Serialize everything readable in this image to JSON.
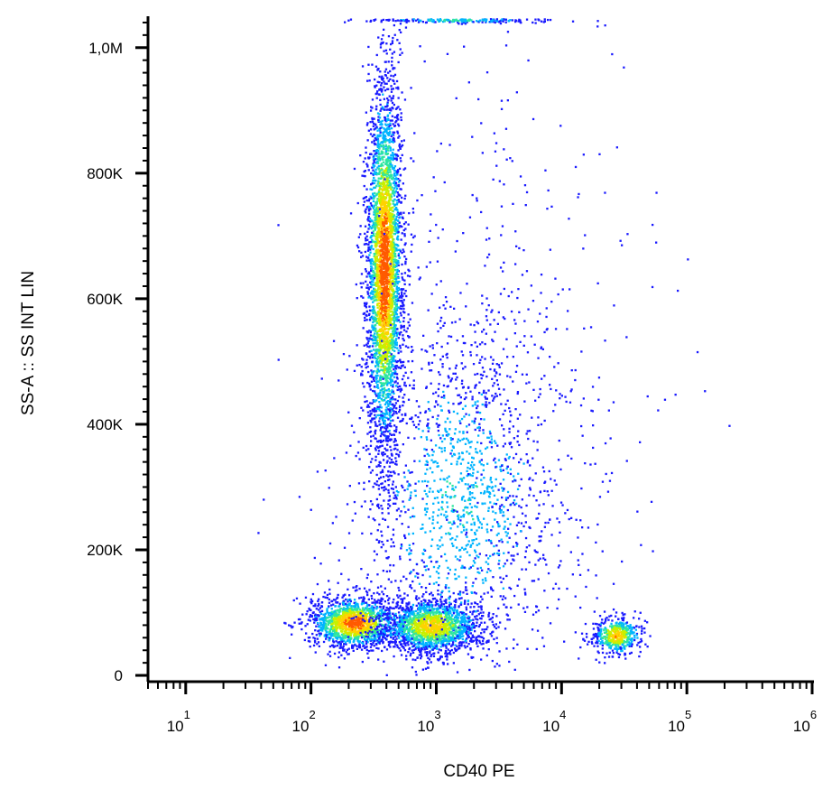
{
  "chart_data": {
    "type": "scatter",
    "subtype": "flow-cytometry-density-dot-plot",
    "xlabel": "CD40 PE",
    "ylabel": "SS-A :: SS INT LIN",
    "x_scale": "log",
    "xlim": [
      5,
      1000000
    ],
    "ylim": [
      -10000,
      1050000
    ],
    "x_ticks": [
      {
        "value": 10,
        "base": "10",
        "exp": "1"
      },
      {
        "value": 100,
        "base": "10",
        "exp": "2"
      },
      {
        "value": 1000,
        "base": "10",
        "exp": "3"
      },
      {
        "value": 10000,
        "base": "10",
        "exp": "4"
      },
      {
        "value": 100000,
        "base": "10",
        "exp": "5"
      },
      {
        "value": 1000000,
        "base": "10",
        "exp": "6"
      }
    ],
    "y_ticks": [
      {
        "value": 0,
        "label": "0"
      },
      {
        "value": 200000,
        "label": "200K"
      },
      {
        "value": 400000,
        "label": "400K"
      },
      {
        "value": 600000,
        "label": "600K"
      },
      {
        "value": 800000,
        "label": "800K"
      },
      {
        "value": 1000000,
        "label": "1,0M"
      }
    ],
    "color_scale": [
      "#1a1aff",
      "#00b4ff",
      "#2ee6a0",
      "#c8f000",
      "#ffd200",
      "#ff5a00",
      "#ff0000"
    ],
    "grid": false,
    "legend": "none",
    "populations": [
      {
        "x_center": 380,
        "y_center": 650000,
        "x_spread_log": 0.07,
        "y_spread": 150000,
        "count": 3600,
        "peak_density": 1.0
      },
      {
        "x_center": 220,
        "y_center": 85000,
        "x_spread_log": 0.18,
        "y_spread": 20000,
        "count": 1500,
        "peak_density": 0.95
      },
      {
        "x_center": 900,
        "y_center": 80000,
        "x_spread_log": 0.2,
        "y_spread": 22000,
        "count": 1600,
        "peak_density": 0.75
      },
      {
        "x_center": 1500,
        "y_center": 280000,
        "x_spread_log": 0.42,
        "y_spread": 150000,
        "count": 1500,
        "peak_density": 0.3
      },
      {
        "x_center": 27000,
        "y_center": 65000,
        "x_spread_log": 0.1,
        "y_spread": 15000,
        "count": 480,
        "peak_density": 0.8
      },
      {
        "x_center": 3000,
        "y_center": 500000,
        "x_spread_log": 0.6,
        "y_spread": 260000,
        "count": 450,
        "peak_density": 0.08
      },
      {
        "x_center": 1500,
        "y_center": 1045000,
        "x_spread_log": 0.35,
        "y_spread": 2000,
        "count": 220,
        "peak_density": 0.4
      }
    ]
  }
}
